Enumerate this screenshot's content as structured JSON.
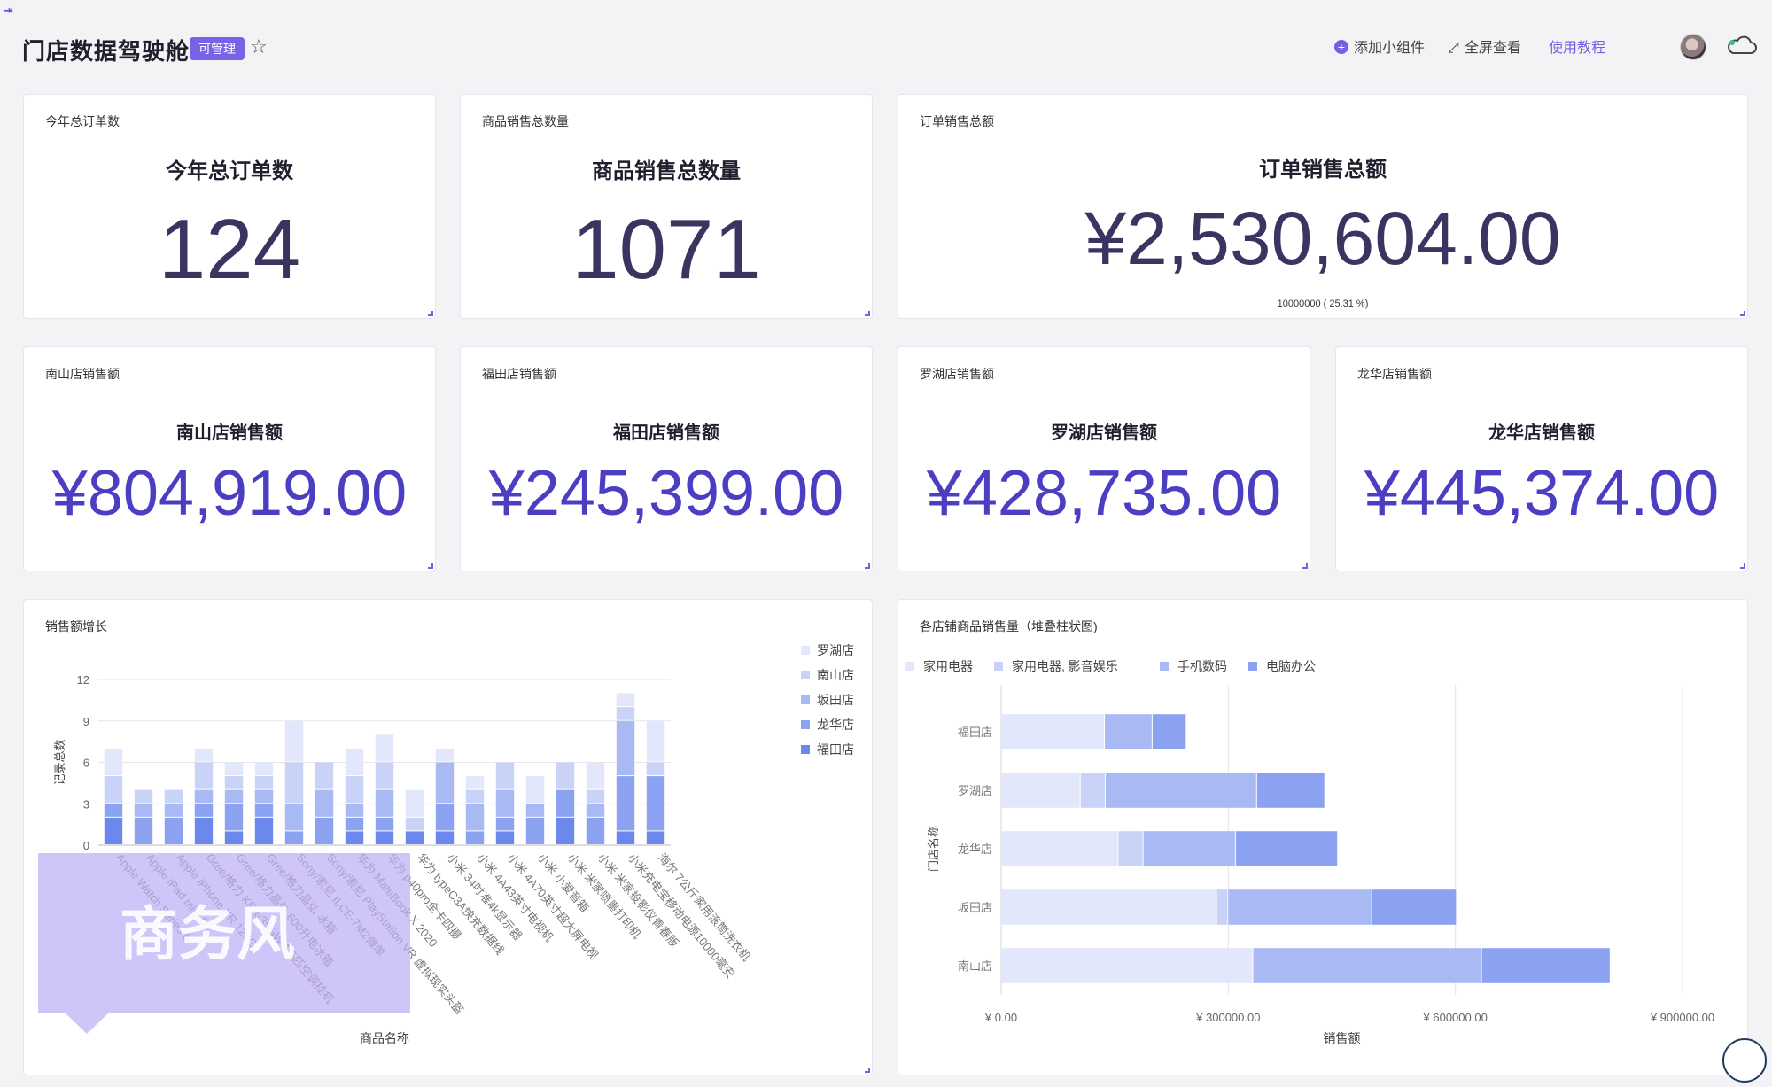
{
  "header": {
    "title": "门店数据驾驶舱",
    "badge": "可管理",
    "actions": {
      "add_widget": "添加小组件",
      "fullscreen": "全屏查看",
      "tutorial": "使用教程"
    }
  },
  "kpi": {
    "total_orders": {
      "label": "今年总订单数",
      "heading": "今年总订单数",
      "value": "124"
    },
    "total_qty": {
      "label": "商品销售总数量",
      "heading": "商品销售总数量",
      "value": "1071"
    },
    "total_sales": {
      "label": "订单销售总额",
      "heading": "订单销售总额",
      "value": "¥2,530,604.00",
      "note": "10000000 ( 25.31 %)"
    },
    "nanshan": {
      "label": "南山店销售额",
      "heading": "南山店销售额",
      "value": "¥804,919.00"
    },
    "futian": {
      "label": "福田店销售额",
      "heading": "福田店销售额",
      "value": "¥245,399.00"
    },
    "luohu": {
      "label": "罗湖店销售额",
      "heading": "罗湖店销售额",
      "value": "¥428,735.00"
    },
    "longhua": {
      "label": "龙华店销售额",
      "heading": "龙华店销售额",
      "value": "¥445,374.00"
    }
  },
  "watermark": "商务风",
  "colors": {
    "accent": "#6f62e4",
    "value_dark": "#3a3560",
    "value_purple": "#4b3ec2",
    "s1": "#e3e7fb",
    "s2": "#c9d2f7",
    "s3": "#a9b9f4",
    "s4": "#8aa2f0",
    "s5": "#6b89ec"
  },
  "chart_data": [
    {
      "type": "bar",
      "stacked": true,
      "title": "销售额增长",
      "xlabel": "商品名称",
      "ylabel": "记录总数",
      "ylim": [
        0,
        12
      ],
      "yticks": [
        "0",
        "3",
        "6",
        "9",
        "12"
      ],
      "legend_position": "right",
      "categories": [
        "Apple Watch Series 6",
        "Apple iPad mini 5",
        "Apple iPhone XR 128G",
        "Gree/格力 KFR-35GW 1.5匹空调挂机",
        "Gree/格力晶弘 600升电冰箱",
        "Gree/格力晶弘 冰箱",
        "Sony/索尼 ILCE-7M2微单",
        "Sony/索尼 PlayStation VR 虚拟现实头盔",
        "华为 MateBook X 2020",
        "华为 p40pro全卡四摄",
        "华为 typeC3A快充数据线",
        "小米 34吋准4k显示器",
        "小米 4A43英寸电视机",
        "小米 4A70英寸超大屏电视",
        "小米 小爱音箱",
        "小米 米家喷墨打印机",
        "小米 米家投影仪青春版",
        "小米充电宝移动电源10000毫安",
        "海尔 7公斤家用滚筒洗衣机"
      ],
      "series": [
        {
          "name": "福田店",
          "values": [
            2,
            0,
            0,
            2,
            1,
            2,
            0,
            0,
            1,
            1,
            1,
            1,
            0,
            1,
            0,
            2,
            0,
            1,
            1
          ]
        },
        {
          "name": "龙华店",
          "values": [
            1,
            2,
            2,
            1,
            2,
            1,
            1,
            2,
            1,
            1,
            0,
            2,
            1,
            1,
            2,
            2,
            2,
            4,
            4
          ]
        },
        {
          "name": "坂田店",
          "values": [
            0,
            1,
            1,
            1,
            1,
            1,
            2,
            2,
            1,
            2,
            0,
            3,
            2,
            2,
            1,
            0,
            1,
            4,
            0
          ]
        },
        {
          "name": "南山店",
          "values": [
            2,
            1,
            1,
            2,
            1,
            1,
            3,
            2,
            2,
            2,
            1,
            0,
            1,
            2,
            0,
            2,
            1,
            1,
            1
          ]
        },
        {
          "name": "罗湖店",
          "values": [
            2,
            0,
            0,
            1,
            1,
            1,
            3,
            0,
            2,
            2,
            2,
            1,
            1,
            0,
            2,
            0,
            2,
            1,
            3
          ]
        }
      ]
    },
    {
      "type": "bar",
      "orientation": "horizontal",
      "stacked": true,
      "title": "各店铺商品销售量（堆叠柱状图)",
      "xlabel": "销售额",
      "ylabel": "门店名称",
      "xlim": [
        0,
        900000
      ],
      "xticks": [
        "¥ 0.00",
        "¥ 300000.00",
        "¥ 600000.00",
        "¥ 900000.00"
      ],
      "legend_position": "top",
      "categories": [
        "福田店",
        "罗湖店",
        "龙华店",
        "坂田店",
        "南山店"
      ],
      "series": [
        {
          "name": "家用电器",
          "values": [
            137000,
            105000,
            155000,
            285000,
            333000
          ]
        },
        {
          "name": "家用电器, 影音娱乐",
          "values": [
            0,
            33000,
            33000,
            15000,
            0
          ]
        },
        {
          "name": "手机数码",
          "values": [
            63000,
            200000,
            122000,
            190000,
            302000
          ]
        },
        {
          "name": "电脑办公",
          "values": [
            45000,
            90000,
            135000,
            112000,
            170000
          ]
        }
      ]
    }
  ]
}
